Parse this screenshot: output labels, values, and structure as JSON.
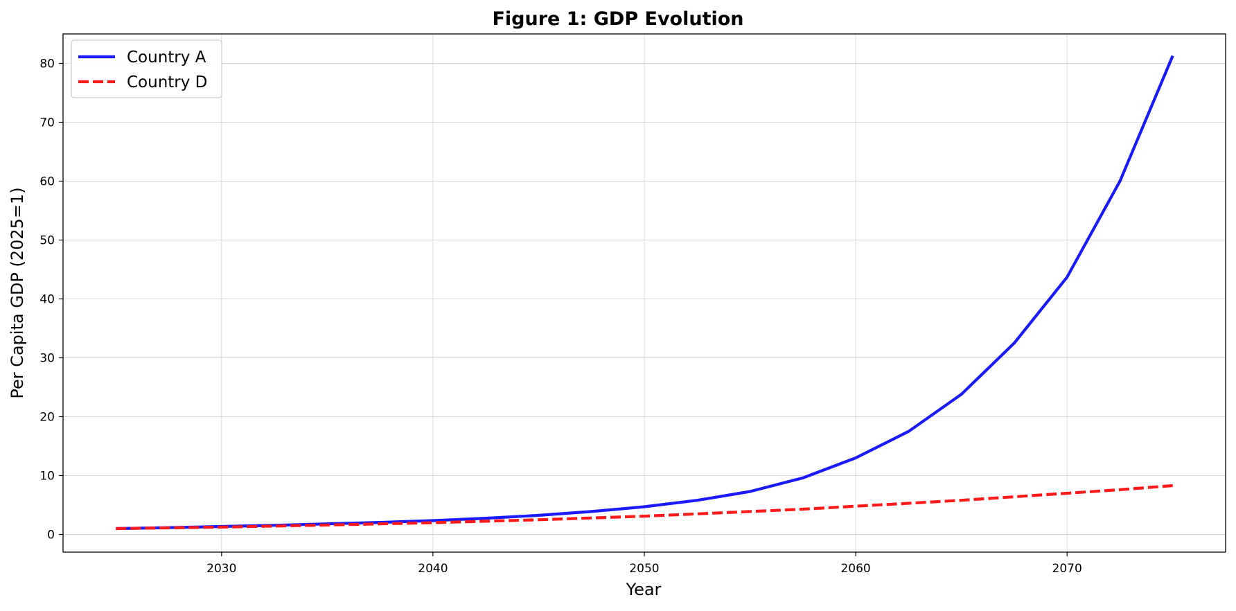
{
  "chart_data": {
    "type": "line",
    "title": "Figure 1: GDP Evolution",
    "xlabel": "Year",
    "ylabel": "Per Capita GDP (2025=1)",
    "xlim": [
      2022.5,
      2077.5
    ],
    "ylim": [
      -3,
      85
    ],
    "x_ticks": [
      2030,
      2040,
      2050,
      2060,
      2070
    ],
    "y_ticks": [
      0,
      10,
      20,
      30,
      40,
      50,
      60,
      70,
      80
    ],
    "grid": true,
    "legend_position": "top-left",
    "x": [
      2025,
      2027.5,
      2030,
      2032.5,
      2035,
      2037.5,
      2040,
      2042.5,
      2045,
      2047.5,
      2050,
      2052.5,
      2055,
      2057.5,
      2060,
      2062.5,
      2065,
      2067.5,
      2070,
      2072.5,
      2075
    ],
    "series": [
      {
        "name": "Country A",
        "color": "#1a1aff",
        "style": "solid",
        "values": [
          1.0,
          1.15,
          1.35,
          1.55,
          1.8,
          2.05,
          2.35,
          2.75,
          3.25,
          3.9,
          4.7,
          5.8,
          7.3,
          9.6,
          13.0,
          17.5,
          23.8,
          32.5,
          43.7,
          60.0,
          81.3
        ]
      },
      {
        "name": "Country D",
        "color": "#ff1a1a",
        "style": "dashed",
        "values": [
          1.0,
          1.12,
          1.25,
          1.42,
          1.6,
          1.8,
          2.0,
          2.25,
          2.5,
          2.8,
          3.1,
          3.5,
          3.9,
          4.3,
          4.8,
          5.3,
          5.8,
          6.4,
          7.0,
          7.6,
          8.3
        ]
      }
    ]
  }
}
